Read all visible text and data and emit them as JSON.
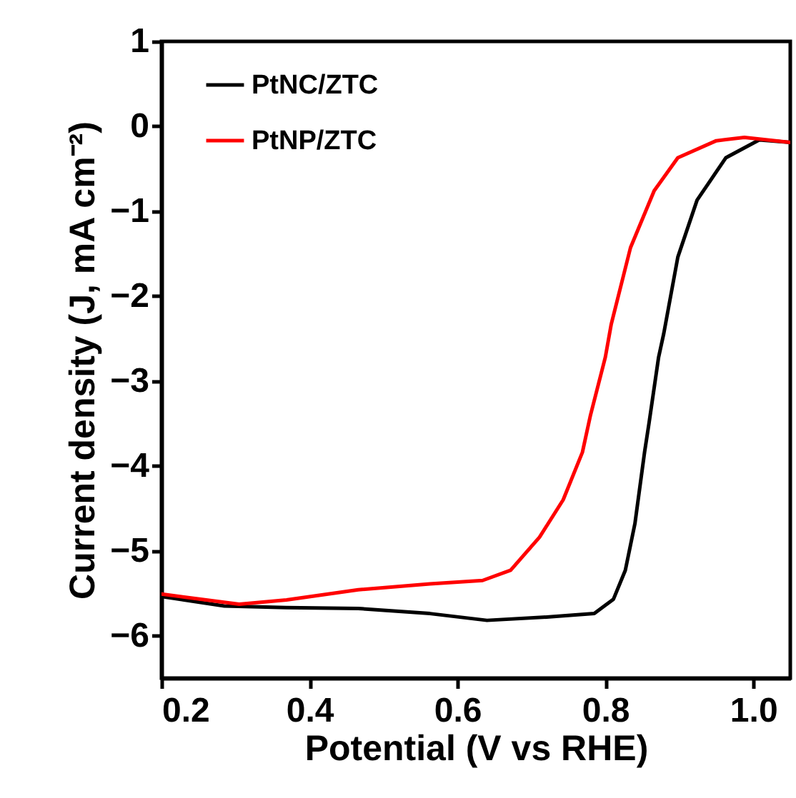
{
  "chart_data": {
    "type": "line",
    "xlabel": "Potential (V vs RHE)",
    "ylabel": "Current density (J, mA cm⁻²)",
    "xlim": [
      0.2,
      1.05
    ],
    "ylim": [
      -6.5,
      1
    ],
    "xticks": [
      0.2,
      0.4,
      0.6,
      0.8,
      {
        "value": 1,
        "label": "1.0"
      }
    ],
    "yticks": [
      1,
      0,
      -1,
      -2,
      -3,
      -4,
      -5,
      -6
    ],
    "legend": "top left",
    "line_style": "solid",
    "series": [
      {
        "name": "PtNC/ZTC",
        "color": "#000000",
        "x": [
          0.2,
          0.285,
          0.369,
          0.466,
          0.563,
          0.64,
          0.724,
          0.785,
          0.811,
          0.827,
          0.84,
          0.853,
          0.859,
          0.872,
          0.879,
          0.898,
          0.924,
          0.963,
          1.008,
          1.05
        ],
        "values": [
          -5.54,
          -5.65,
          -5.67,
          -5.68,
          -5.74,
          -5.82,
          -5.78,
          -5.74,
          -5.57,
          -5.23,
          -4.68,
          -3.84,
          -3.5,
          -2.72,
          -2.44,
          -1.54,
          -0.87,
          -0.37,
          -0.16,
          -0.19
        ]
      },
      {
        "name": "PtNP/ZTC",
        "color": "#ff0000",
        "x": [
          0.2,
          0.305,
          0.369,
          0.466,
          0.563,
          0.634,
          0.672,
          0.711,
          0.743,
          0.769,
          0.78,
          0.8,
          0.808,
          0.834,
          0.866,
          0.898,
          0.95,
          0.988,
          1.05
        ],
        "values": [
          -5.51,
          -5.63,
          -5.58,
          -5.46,
          -5.39,
          -5.35,
          -5.23,
          -4.84,
          -4.4,
          -3.84,
          -3.4,
          -2.72,
          -2.33,
          -1.43,
          -0.76,
          -0.37,
          -0.17,
          -0.13,
          -0.19
        ]
      }
    ]
  }
}
